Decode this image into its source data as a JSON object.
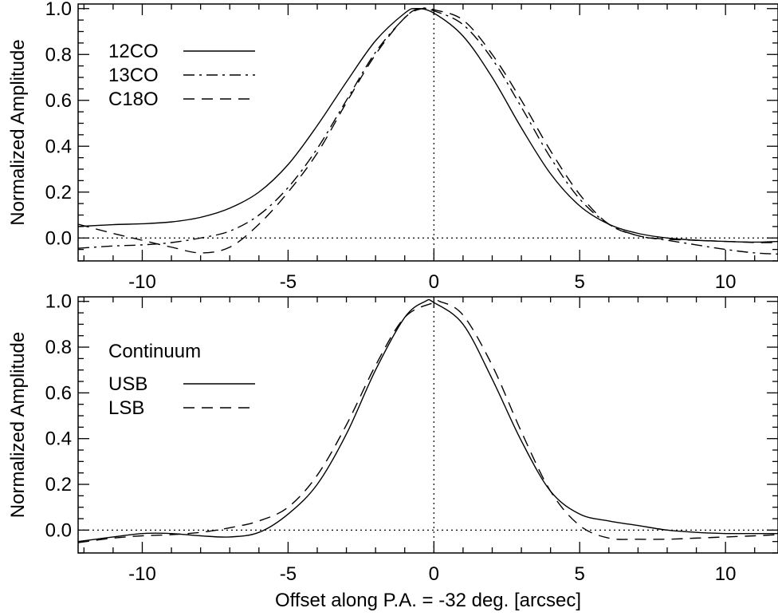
{
  "chart_data": [
    {
      "type": "line",
      "ylabel": "Normalized Amplitude",
      "xlim": [
        -12.2,
        11.8
      ],
      "ylim": [
        -0.1,
        1.02
      ],
      "xticks": [
        -10,
        -5,
        0,
        5,
        10
      ],
      "xtick_labels": [
        "-10",
        "-5",
        "0",
        "5",
        "10"
      ],
      "yticks": [
        0.0,
        0.2,
        0.4,
        0.6,
        0.8,
        1.0
      ],
      "ytick_labels": [
        "0.0",
        "0.2",
        "0.4",
        "0.6",
        "0.8",
        "1.0"
      ],
      "reference_lines": {
        "y": 0.0,
        "x": 0.0
      },
      "legend_title": "",
      "legend_position": "top-left",
      "series": [
        {
          "name": "12CO",
          "linestyle": "solid",
          "x": [
            -12.2,
            -11,
            -10,
            -9,
            -8,
            -7,
            -6,
            -5,
            -4,
            -3,
            -2,
            -1,
            -0.6,
            0,
            1,
            2,
            3,
            4,
            5,
            6,
            7,
            8,
            9,
            10,
            11,
            11.8
          ],
          "y": [
            0.05,
            0.058,
            0.062,
            0.07,
            0.09,
            0.13,
            0.2,
            0.32,
            0.49,
            0.68,
            0.86,
            0.98,
            1.0,
            0.98,
            0.88,
            0.7,
            0.48,
            0.28,
            0.14,
            0.06,
            0.02,
            0.0,
            -0.01,
            -0.015,
            -0.018,
            -0.015
          ]
        },
        {
          "name": "13CO",
          "linestyle": "dash-dot",
          "x": [
            -12.2,
            -11,
            -10,
            -9,
            -8,
            -7,
            -6,
            -5,
            -4,
            -3,
            -2,
            -1,
            -0.5,
            0,
            1,
            2,
            3,
            4,
            5,
            6,
            7,
            8,
            9,
            10,
            11,
            11.8
          ],
          "y": [
            -0.045,
            -0.035,
            -0.03,
            -0.02,
            0.0,
            0.03,
            0.1,
            0.22,
            0.39,
            0.6,
            0.81,
            0.96,
            1.0,
            0.99,
            0.93,
            0.78,
            0.57,
            0.35,
            0.17,
            0.06,
            0.01,
            -0.01,
            -0.03,
            -0.05,
            -0.065,
            -0.07
          ]
        },
        {
          "name": "C18O",
          "linestyle": "dashed",
          "x": [
            -12.2,
            -11,
            -10,
            -9,
            -8,
            -7,
            -6,
            -5,
            -4,
            -3,
            -2,
            -1,
            -0.4,
            0,
            1,
            2,
            3,
            4,
            5,
            6,
            7,
            8,
            9,
            10,
            11,
            11.8
          ],
          "y": [
            0.06,
            0.02,
            -0.01,
            -0.04,
            -0.065,
            -0.04,
            0.06,
            0.2,
            0.37,
            0.59,
            0.8,
            0.96,
            1.0,
            0.995,
            0.95,
            0.8,
            0.6,
            0.38,
            0.19,
            0.06,
            0.01,
            -0.005,
            -0.01,
            -0.015,
            -0.02,
            -0.02
          ]
        }
      ]
    },
    {
      "type": "line",
      "ylabel": "Normalized Amplitude",
      "xlabel": "Offset along P.A. = -32 deg. [arcsec]",
      "xlim": [
        -12.2,
        11.8
      ],
      "ylim": [
        -0.1,
        1.02
      ],
      "xticks": [
        -10,
        -5,
        0,
        5,
        10
      ],
      "xtick_labels": [
        "-10",
        "-5",
        "0",
        "5",
        "10"
      ],
      "yticks": [
        0.0,
        0.2,
        0.4,
        0.6,
        0.8,
        1.0
      ],
      "ytick_labels": [
        "0.0",
        "0.2",
        "0.4",
        "0.6",
        "0.8",
        "1.0"
      ],
      "reference_lines": {
        "y": 0.0,
        "x": 0.0
      },
      "legend_title": "Continuum",
      "legend_position": "top-left",
      "series": [
        {
          "name": "USB",
          "linestyle": "solid",
          "x": [
            -12.2,
            -11,
            -10,
            -9,
            -8,
            -7,
            -6,
            -5,
            -4,
            -3,
            -2,
            -1,
            -0.3,
            0,
            1,
            2,
            3,
            4,
            5,
            6,
            7,
            8,
            9,
            10,
            11,
            11.8
          ],
          "y": [
            -0.05,
            -0.03,
            -0.015,
            -0.015,
            -0.025,
            -0.03,
            -0.01,
            0.07,
            0.2,
            0.42,
            0.7,
            0.93,
            1.0,
            0.995,
            0.9,
            0.66,
            0.39,
            0.17,
            0.07,
            0.04,
            0.02,
            0.0,
            -0.01,
            -0.015,
            -0.015,
            -0.015
          ]
        },
        {
          "name": "LSB",
          "linestyle": "dashed",
          "x": [
            -12.2,
            -11,
            -10,
            -9,
            -8,
            -7,
            -6,
            -5,
            -4,
            -3,
            -2,
            -1,
            0,
            0.2,
            1,
            2,
            3,
            4,
            5,
            6,
            7,
            8,
            9,
            10,
            11,
            11.8
          ],
          "y": [
            -0.055,
            -0.035,
            -0.025,
            -0.02,
            -0.01,
            0.01,
            0.04,
            0.1,
            0.24,
            0.46,
            0.72,
            0.93,
            0.995,
            1.0,
            0.94,
            0.72,
            0.43,
            0.17,
            0.02,
            -0.035,
            -0.04,
            -0.04,
            -0.035,
            -0.03,
            -0.025,
            -0.02
          ]
        }
      ]
    }
  ]
}
